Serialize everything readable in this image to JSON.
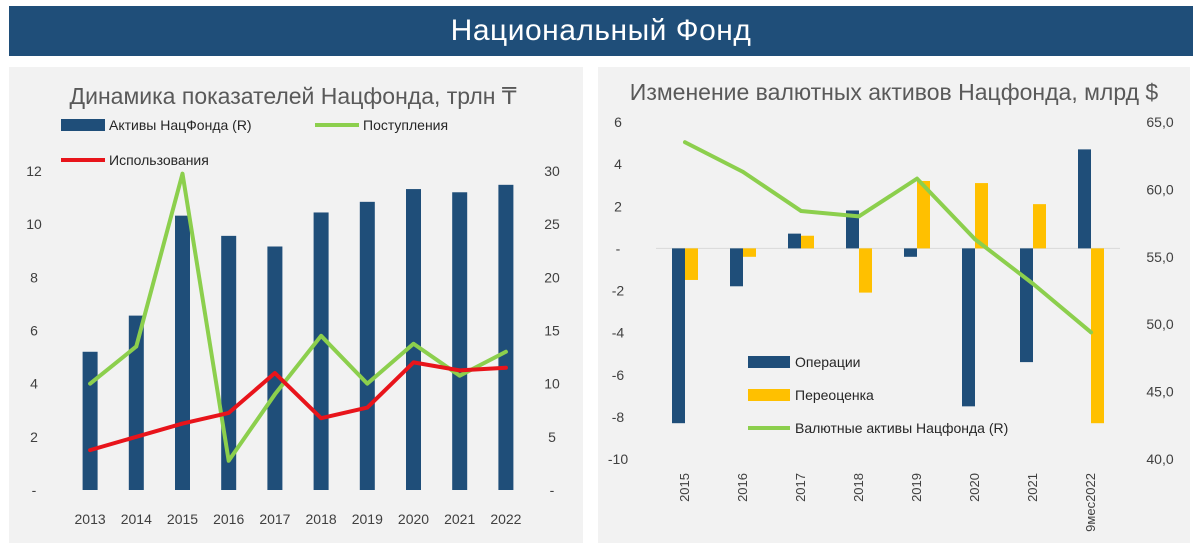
{
  "banner": {
    "title": "Национальный Фонд"
  },
  "colors": {
    "navy": "#1f4e79",
    "green": "#8ccf4d",
    "red": "#e8141b",
    "yellow": "#ffc000",
    "banner": "#1f4e79",
    "panel": "#f2f2f2"
  },
  "chart_data": [
    {
      "type": "bar+line",
      "title": "Динамика показателей Нацфонда, трлн ₸",
      "categories": [
        "2013",
        "2014",
        "2015",
        "2016",
        "2017",
        "2018",
        "2019",
        "2020",
        "2021",
        "2022"
      ],
      "y_left": {
        "ticks": [
          "-",
          "2",
          "4",
          "6",
          "8",
          "10",
          "12"
        ],
        "range": [
          0,
          12
        ]
      },
      "y_right": {
        "ticks": [
          "-",
          "5",
          "10",
          "15",
          "20",
          "25",
          "30"
        ],
        "range": [
          0,
          30
        ]
      },
      "series": [
        {
          "name": "Активы НацФонда (R)",
          "kind": "bar",
          "axis": "right",
          "values": [
            13.0,
            16.4,
            25.8,
            23.9,
            22.9,
            26.1,
            27.1,
            28.3,
            28.0,
            28.7
          ]
        },
        {
          "name": "Поступления",
          "kind": "line",
          "axis": "left",
          "values": [
            4.0,
            5.4,
            11.9,
            1.1,
            3.6,
            5.8,
            4.0,
            5.5,
            4.3,
            5.2
          ]
        },
        {
          "name": "Использования",
          "kind": "line",
          "axis": "left",
          "values": [
            1.5,
            2.0,
            2.5,
            2.9,
            4.4,
            2.7,
            3.1,
            4.8,
            4.5,
            4.6
          ]
        }
      ],
      "legend": "top"
    },
    {
      "type": "bar+line",
      "title": "Изменение валютных активов Нацфонда, млрд $",
      "categories": [
        "2015",
        "2016",
        "2017",
        "2018",
        "2019",
        "2020",
        "2021",
        "9мес2022"
      ],
      "y_left": {
        "ticks": [
          "6",
          "4",
          "2",
          "-",
          "-2",
          "-4",
          "-6",
          "-8",
          "-10"
        ],
        "range": [
          -10,
          6
        ]
      },
      "y_right": {
        "ticks": [
          "65,0",
          "60,0",
          "55,0",
          "50,0",
          "45,0",
          "40,0"
        ],
        "range": [
          40,
          65
        ]
      },
      "series": [
        {
          "name": "Операции",
          "kind": "bar",
          "axis": "left",
          "values": [
            -8.3,
            -1.8,
            0.7,
            1.8,
            -0.4,
            -7.5,
            -5.4,
            4.7
          ]
        },
        {
          "name": "Переоценка",
          "kind": "bar",
          "axis": "left",
          "values": [
            -1.5,
            -0.4,
            0.6,
            -2.1,
            3.2,
            3.1,
            2.1,
            -8.3
          ]
        },
        {
          "name": "Валютные активы Нацфонда (R)",
          "kind": "line",
          "axis": "right",
          "values": [
            63.5,
            61.3,
            58.4,
            58.0,
            60.8,
            56.3,
            53.0,
            49.4
          ]
        }
      ],
      "legend": "inside-left"
    }
  ]
}
